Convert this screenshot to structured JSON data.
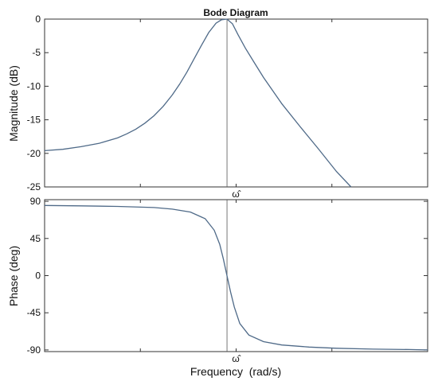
{
  "chart_data": {
    "title": "Bode Diagram",
    "xlabel": "Frequency  (rad/s)",
    "marker_label": "ω̂",
    "colors": {
      "curve": "#4f6a88",
      "axes": "#333333",
      "marker_line": "#555555"
    },
    "panels": [
      {
        "type": "line",
        "ylabel": "Magnitude (dB)",
        "ylim": [
          -25,
          0
        ],
        "yticks": [
          0,
          -5,
          -10,
          -15,
          -20,
          -25
        ],
        "ytick_labels": [
          "0",
          "-5",
          "-10",
          "-15",
          "-20",
          "-25"
        ],
        "x": [
          0,
          0.1,
          0.2,
          0.3,
          0.4,
          0.45,
          0.5,
          0.55,
          0.6,
          0.65,
          0.7,
          0.74,
          0.78,
          0.82,
          0.86,
          0.9,
          0.94,
          0.97,
          1.0,
          1.03,
          1.06,
          1.1,
          1.15,
          1.2,
          1.3,
          1.4,
          1.5,
          1.6,
          1.68
        ],
        "y": [
          -19.6,
          -19.4,
          -19.0,
          -18.5,
          -17.7,
          -17.1,
          -16.4,
          -15.5,
          -14.4,
          -13.0,
          -11.3,
          -9.7,
          -7.9,
          -5.9,
          -3.9,
          -2.0,
          -0.6,
          -0.1,
          0.0,
          -0.7,
          -2.3,
          -4.3,
          -6.5,
          -8.7,
          -12.6,
          -16.0,
          -19.3,
          -22.7,
          -25.0
        ],
        "marker_x": 1.0,
        "grid": false
      },
      {
        "type": "line",
        "ylabel": "Phase (deg)",
        "ylim": [
          -92,
          92
        ],
        "yticks": [
          90,
          45,
          0,
          -45,
          -90
        ],
        "ytick_labels": [
          "90",
          "45",
          "0",
          "-45",
          "-90"
        ],
        "x": [
          0,
          0.2,
          0.4,
          0.6,
          0.7,
          0.8,
          0.88,
          0.93,
          0.96,
          0.98,
          1.0,
          1.02,
          1.04,
          1.07,
          1.12,
          1.2,
          1.3,
          1.45,
          1.6,
          1.8,
          2.0,
          2.1
        ],
        "y": [
          85,
          84.5,
          83.8,
          82.5,
          80.5,
          77,
          69,
          55,
          38,
          20,
          0,
          -20,
          -38,
          -58,
          -72,
          -80,
          -84,
          -86.5,
          -88,
          -89,
          -89.5,
          -90
        ],
        "marker_x": 1.0,
        "grid": false
      }
    ]
  }
}
